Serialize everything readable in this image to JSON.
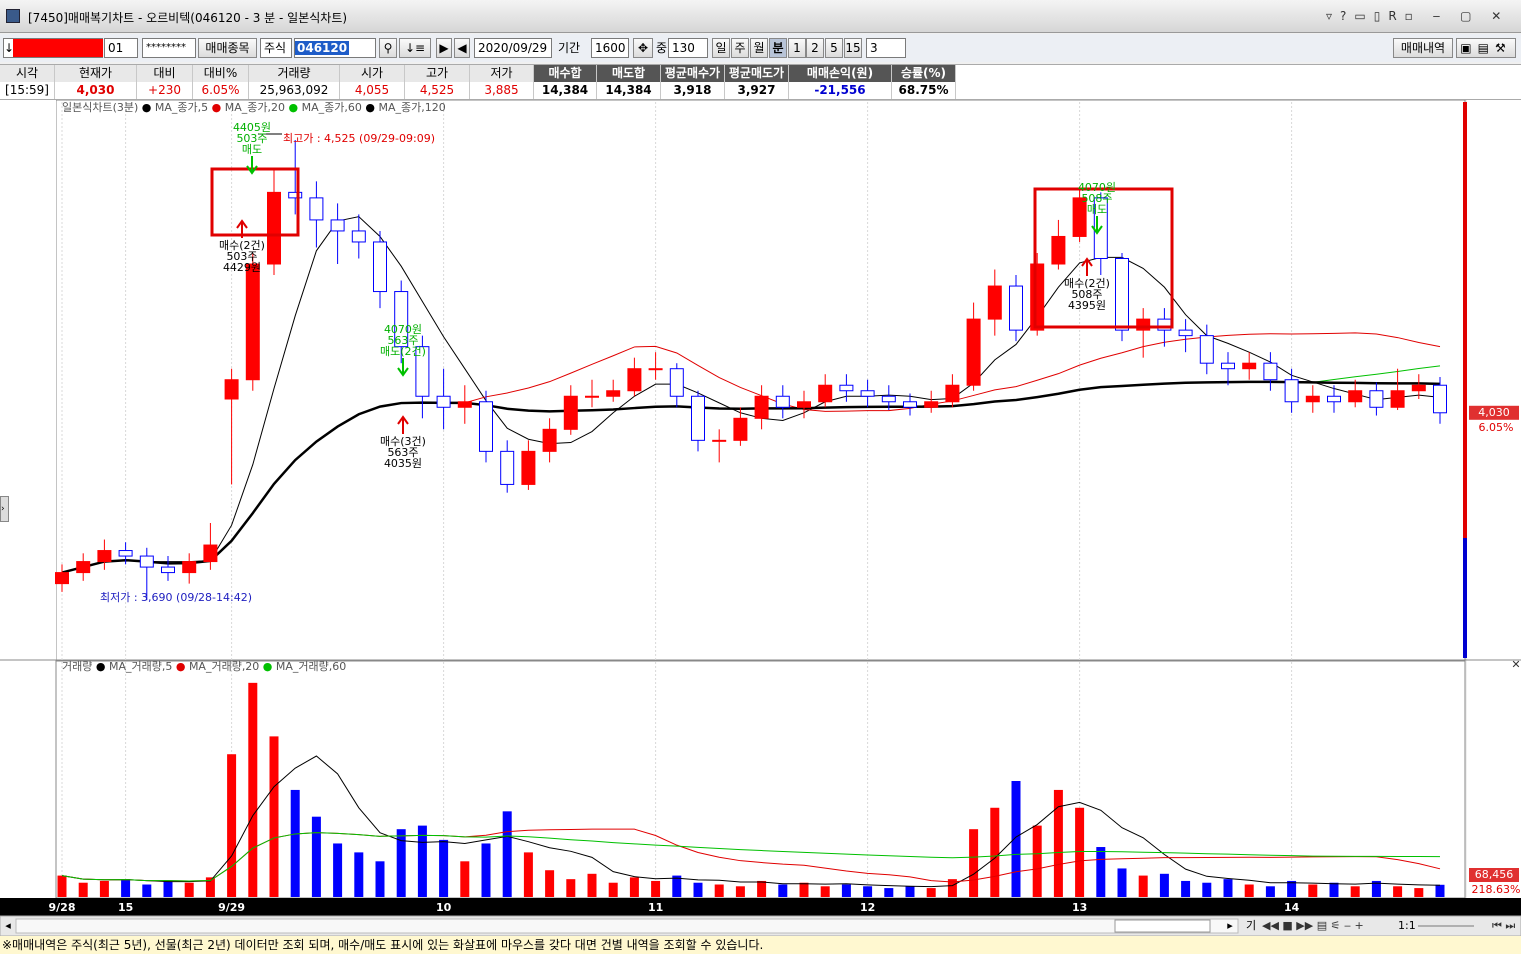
{
  "window": {
    "title": "[7450]매매복기차트 - 오르비텍(046120 - 3 분 - 일본식차트)"
  },
  "toolbar": {
    "account": "01",
    "password": "********",
    "symbol_button": "매매종목",
    "market": "주식",
    "code": "046120",
    "date": "2020/09/29",
    "period_label": "기간",
    "period": "1600",
    "mid_label": "중",
    "count": "130",
    "units": [
      "일",
      "주",
      "월",
      "분",
      "1",
      "2",
      "5",
      "15"
    ],
    "interval": "3",
    "history_button": "매매내역"
  },
  "summary": {
    "headers": [
      "시각",
      "현재가",
      "대비",
      "대비%",
      "거래량",
      "시가",
      "고가",
      "저가",
      "매수합",
      "매도합",
      "평균매수가",
      "평균매도가",
      "매매손익(원)",
      "승률(%)"
    ],
    "values": [
      "[15:59]",
      "4,030",
      "+230",
      "6.05%",
      "25,963,092",
      "4,055",
      "4,525",
      "3,885",
      "14,384",
      "14,384",
      "3,918",
      "3,927",
      "-21,556",
      "68.75%"
    ]
  },
  "chart_data": {
    "type": "candlestick",
    "title": "일본식차트(3분)",
    "categories": [
      "9/28",
      null,
      null,
      "15",
      null,
      null,
      null,
      null,
      "9/29",
      null,
      null,
      null,
      null,
      null,
      null,
      null,
      null,
      null,
      "10",
      null,
      null,
      null,
      null,
      null,
      null,
      null,
      null,
      null,
      "11",
      null,
      null,
      null,
      null,
      null,
      null,
      null,
      null,
      null,
      "12",
      null,
      null,
      null,
      null,
      null,
      null,
      null,
      null,
      null,
      "13",
      null,
      null,
      null,
      null,
      null,
      null,
      null,
      null,
      null,
      "14",
      null,
      null,
      null,
      null,
      null,
      null,
      null
    ],
    "open": [
      3720,
      3740,
      3760,
      3780,
      3770,
      3750,
      3740,
      3760,
      4055,
      4090,
      4300,
      4430,
      4420,
      4380,
      4360,
      4340,
      4250,
      4150,
      4060,
      4040,
      4050,
      3960,
      3900,
      3960,
      4000,
      4060,
      4060,
      4070,
      4110,
      4110,
      4060,
      3980,
      3980,
      4020,
      4060,
      4040,
      4050,
      4080,
      4070,
      4060,
      4050,
      4040,
      4050,
      4080,
      4200,
      4260,
      4180,
      4300,
      4350,
      4420,
      4310,
      4180,
      4200,
      4180,
      4170,
      4120,
      4110,
      4120,
      4090,
      4050,
      4060,
      4050,
      4070,
      4040,
      4070,
      4080
    ],
    "high": [
      3755,
      3775,
      3800,
      3795,
      3785,
      3770,
      3775,
      3830,
      4110,
      4320,
      4470,
      4525,
      4450,
      4410,
      4390,
      4360,
      4270,
      4170,
      4110,
      4080,
      4070,
      3980,
      3980,
      4020,
      4080,
      4090,
      4090,
      4130,
      4140,
      4120,
      4070,
      4000,
      4040,
      4080,
      4080,
      4070,
      4100,
      4100,
      4090,
      4080,
      4065,
      4070,
      4100,
      4230,
      4290,
      4280,
      4320,
      4380,
      4440,
      4430,
      4320,
      4220,
      4220,
      4200,
      4190,
      4140,
      4140,
      4140,
      4110,
      4080,
      4080,
      4090,
      4085,
      4110,
      4100,
      4095
    ],
    "low": [
      3705,
      3725,
      3745,
      3755,
      3690,
      3725,
      3720,
      3745,
      3900,
      4070,
      4280,
      4390,
      4330,
      4300,
      4310,
      4220,
      4120,
      4020,
      4000,
      4010,
      3940,
      3885,
      3890,
      3940,
      3990,
      4040,
      4050,
      4060,
      4090,
      4040,
      3960,
      3940,
      3970,
      4000,
      4020,
      4020,
      4040,
      4050,
      4040,
      4035,
      4025,
      4030,
      4040,
      4070,
      4170,
      4160,
      4170,
      4290,
      4340,
      4280,
      4160,
      4130,
      4150,
      4140,
      4100,
      4080,
      4090,
      4070,
      4030,
      4030,
      4030,
      4040,
      4025,
      4035,
      4055,
      4010
    ],
    "close": [
      3740,
      3760,
      3780,
      3770,
      3750,
      3740,
      3760,
      3790,
      4090,
      4300,
      4430,
      4420,
      4380,
      4360,
      4340,
      4250,
      4150,
      4060,
      4040,
      4050,
      3960,
      3900,
      3960,
      4000,
      4060,
      4060,
      4070,
      4110,
      4110,
      4060,
      3980,
      3980,
      4020,
      4060,
      4040,
      4050,
      4080,
      4070,
      4060,
      4050,
      4040,
      4050,
      4080,
      4200,
      4260,
      4180,
      4300,
      4350,
      4420,
      4310,
      4180,
      4200,
      4180,
      4170,
      4120,
      4110,
      4120,
      4090,
      4050,
      4060,
      4050,
      4070,
      4040,
      4070,
      4080,
      4030
    ],
    "up_color": "#ff0000",
    "down_color": "#0000ff",
    "ylim": [
      3585,
      4594
    ],
    "moving_averages": [
      {
        "name": "MA_종가,5",
        "color": "#000000"
      },
      {
        "name": "MA_종가,20",
        "color": "#e00000"
      },
      {
        "name": "MA_종가,60",
        "color": "#00c000"
      },
      {
        "name": "MA_종가,120",
        "color": "#000000"
      }
    ],
    "last_price": {
      "value": 4030,
      "label": "4,030"
    },
    "change_label": "6.05%",
    "annotations": {
      "high_label": "최고가 : 4,525 (09/29-09:09)",
      "low_label": "최저가 : 3,690 (09/28-14:42)",
      "trades": [
        {
          "sell_price": "4405원",
          "sell_qty": "503주",
          "sell_label": "매도",
          "buy_label": "매수(2건)",
          "buy_qty": "503주",
          "buy_price": "4429원"
        },
        {
          "sell_price": "4070원",
          "sell_qty": "563주",
          "sell_label": "매도(2건)",
          "buy_label": "매수(3건)",
          "buy_qty": "563주",
          "buy_price": "4035원"
        },
        {
          "sell_price": "4070원",
          "sell_qty": "508주",
          "sell_label": "매도",
          "buy_label": "매수(2건)",
          "buy_qty": "508주",
          "buy_price": "4395원"
        }
      ]
    },
    "volume": {
      "name": "거래량",
      "values": [
        120000,
        80000,
        90000,
        100000,
        70000,
        90000,
        80000,
        110000,
        800000,
        1200000,
        900000,
        600000,
        450000,
        300000,
        250000,
        200000,
        380000,
        400000,
        320000,
        200000,
        300000,
        480000,
        250000,
        150000,
        100000,
        130000,
        80000,
        110000,
        90000,
        120000,
        80000,
        70000,
        60000,
        90000,
        70000,
        80000,
        60000,
        70000,
        60000,
        50000,
        60000,
        50000,
        100000,
        380000,
        500000,
        650000,
        400000,
        600000,
        500000,
        280000,
        160000,
        120000,
        130000,
        90000,
        80000,
        100000,
        70000,
        60000,
        90000,
        70000,
        80000,
        60000,
        90000,
        60000,
        50000,
        68456
      ],
      "ylim": [
        0,
        1300000
      ],
      "moving_averages": [
        {
          "name": "MA_거래량,5",
          "color": "#000000"
        },
        {
          "name": "MA_거래량,20",
          "color": "#e00000"
        },
        {
          "name": "MA_거래량,60",
          "color": "#00c000"
        }
      ],
      "last_label": "68,456",
      "ratio_label": "218.63%"
    }
  },
  "scrollbar": {
    "zoom": "1:1",
    "mode": "기"
  },
  "footer": {
    "note": "※매매내역은 주식(최근 5년), 선물(최근 2년) 데이터만 조회 되며, 매수/매도 표시에 있는 화살표에 마우스를 갖다 대면 건별 내역을 조회할 수 있습니다."
  }
}
